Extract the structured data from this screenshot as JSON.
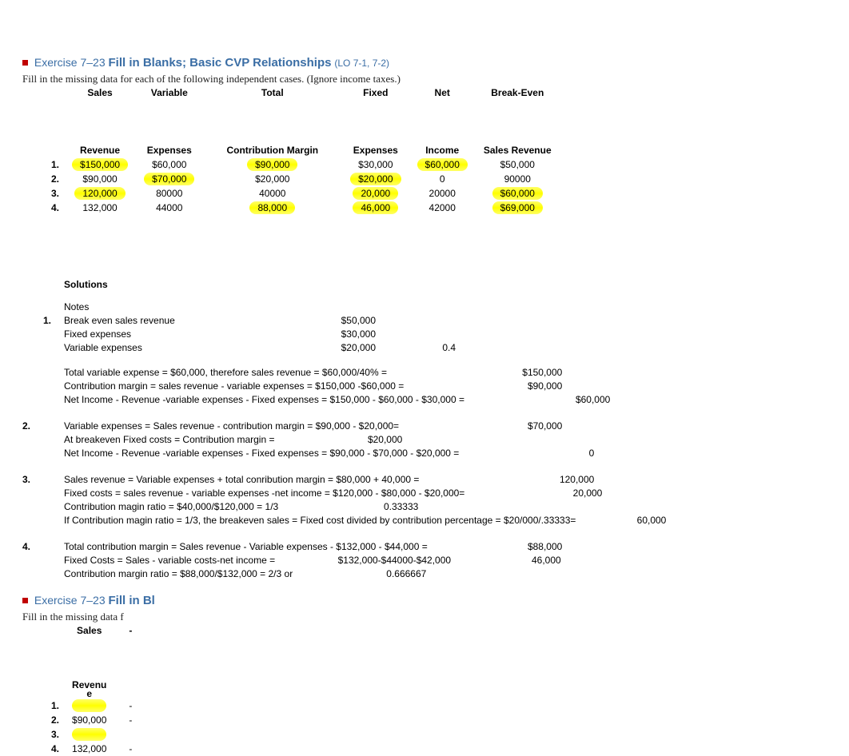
{
  "exercise": {
    "label": "Exercise 7–23",
    "title_main": "Fill in Blanks; Basic CVP Relationships",
    "lo": "(LO 7-1, 7-2)",
    "instruction": "Fill in the missing data for each of the following independent cases. (Ignore income taxes.)"
  },
  "headers_row1": {
    "sales": "Sales",
    "variable": "Variable",
    "total": "Total",
    "fixed": "Fixed",
    "net": "Net",
    "breakeven": "Break-Even"
  },
  "headers_row2": {
    "revenue": "Revenue",
    "expenses": "Expenses",
    "cm": "Contribution Margin",
    "expenses2": "Expenses",
    "income": "Income",
    "sales_rev": "Sales Revenue"
  },
  "rows": [
    {
      "n": "1.",
      "rev": "$150,000",
      "var": "$60,000",
      "cm": "$90,000",
      "fix": "$30,000",
      "ni": "$60,000",
      "be": "$50,000",
      "hl": {
        "rev": true,
        "cm": true,
        "ni": true
      }
    },
    {
      "n": "2.",
      "rev": "$90,000",
      "var": "$70,000",
      "cm": "$20,000",
      "fix": "$20,000",
      "ni": "0",
      "be": "90000",
      "hl": {
        "var": true,
        "fix": true
      }
    },
    {
      "n": "3.",
      "rev": "120,000",
      "var": "80000",
      "cm": "40000",
      "fix": "20,000",
      "ni": "20000",
      "be": "$60,000",
      "hl": {
        "rev": true,
        "fix": true,
        "be": true
      }
    },
    {
      "n": "4.",
      "rev": "132,000",
      "var": "44000",
      "cm": "88,000",
      "fix": "46,000",
      "ni": "42000",
      "be": "$69,000",
      "hl": {
        "cm": true,
        "fix": true,
        "be": true
      }
    }
  ],
  "right": {
    "label": "Exercise 7–23",
    "title_main": "Fill in Bl",
    "instruction": "Fill in the missing data f",
    "h1_sales": "Sales",
    "h2_revenue": "Revenu",
    "h2_revenue2": "e",
    "rows": [
      {
        "n": "1.",
        "rev": "",
        "dash": "-",
        "hl": true
      },
      {
        "n": "2.",
        "rev": "$90,000",
        "dash": "-",
        "hl": false
      },
      {
        "n": "3.",
        "rev": "",
        "dash": "",
        "hl": true
      },
      {
        "n": "4.",
        "rev": "132,000",
        "dash": "-",
        "hl": false
      }
    ]
  },
  "solutions": {
    "title": "Solutions",
    "notes": "Notes",
    "s1": {
      "num": "1.",
      "l1": "Break even sales revenue",
      "v1": "$50,000",
      "l2": "Fixed expenses",
      "v2": "$30,000",
      "l3": "Variable expenses",
      "v3": "$20,000",
      "v3b": "0.4",
      "f1_l": "Total variable expense = $60,000, therefore sales revenue = $60,000/40% =",
      "f1_v": "$150,000",
      "f2_l": "Contribution margin = sales revenue - variable expenses = $150,000 -$60,000 =",
      "f2_v": "$90,000",
      "f3_l": "Net Income - Revenue -variable expenses - Fixed expenses = $150,000 - $60,000 - $30,000 =",
      "f3_v": "$60,000"
    },
    "s2": {
      "num": "2.",
      "f1_l": "Variable expenses = Sales revenue - contribution margin = $90,000 - $20,000=",
      "f1_v": "$70,000",
      "f2_l": "At breakeven Fixed costs  = Contribution margin =",
      "f2_v": "$20,000",
      "f3_l": "Net Income - Revenue -variable expenses - Fixed expenses = $90,000 - $70,000 - $20,000 =",
      "f3_v": "0"
    },
    "s3": {
      "num": "3.",
      "f1_l": " Sales revenue = Variable expenses + total conribution margin = $80,000 + 40,000 =",
      "f1_v": "120,000",
      "f2_l": "Fixed costs = sales revenue - variable expenses -net income = $120,000 - $80,000 - $20,000=",
      "f2_v": "20,000",
      "f3_l": "Contribution magin ratio = $40,000/$120,000 = 1/3",
      "f3_v": "0.33333",
      "f4_l": "If Contribution magin ratio = 1/3, the breakeven sales = Fixed cost divided by contribution percentage = $20/000/.33333=",
      "f4_v": "60,000"
    },
    "s4": {
      "num": "4.",
      "f1_l": "Total contribution margin = Sales revenue - Variable expenses - $132,000 - $44,000 =",
      "f1_v": "$88,000",
      "f2_l": "Fixed Costs = Sales - variable costs-net income  =",
      "f2_m": "$132,000-$44000-$42,000",
      "f2_v": "46,000",
      "f3_l": "Contribution margin ratio = $88,000/$132,000 = 2/3 or",
      "f3_v": "0.666667"
    }
  },
  "colors": {
    "title_blue": "#3b6ea5",
    "red": "#c00000",
    "highlight": "#ffff00"
  }
}
